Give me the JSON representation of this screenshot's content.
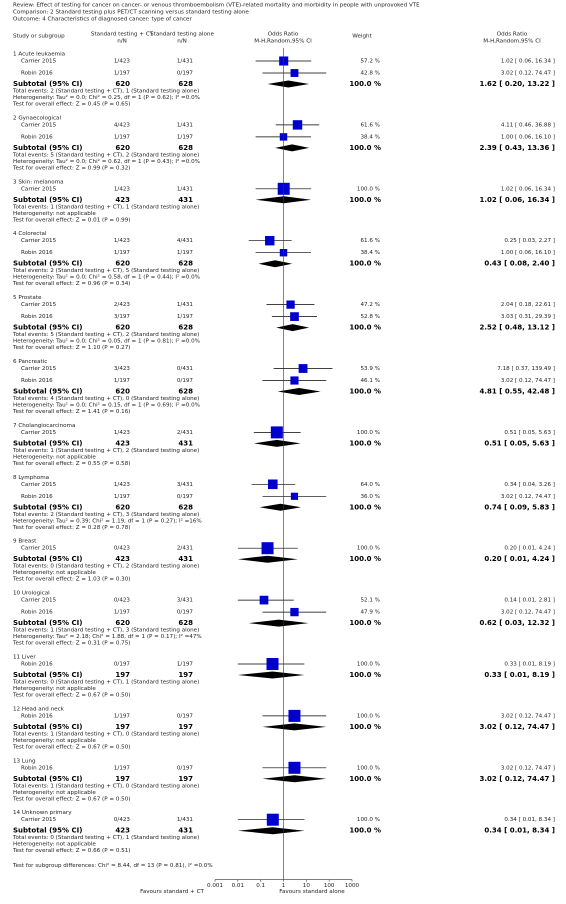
{
  "chart_data": {
    "type": "forest",
    "header": {
      "review": "Review:  Effect of testing for cancer on cancer- or venous thromboembolism (VTE)-related mortality and morbidity in people with unprovoked VTE",
      "comparison": "Comparison:  2 Standard testing plus PET/CT scanning versus standard testing alone",
      "outcome": "Outcome:  4 Characteristics of diagnosed cancer: type of cancer"
    },
    "columns": {
      "study": "Study or subgroup",
      "exp": "Standard testing + CT",
      "exp_sub": "n/N",
      "ctrl": "Standard testing alone",
      "ctrl_sub": "n/N",
      "plot": "Odds Ratio",
      "plot_sub": "M-H,Random,95% CI",
      "weight": "Weight",
      "ci": "Odds Ratio",
      "ci_sub": "M-H,Random,95% CI"
    },
    "subtotal_label": "Subtotal (95% CI)",
    "color": "#0000cc",
    "subgroups": [
      {
        "name": "1 Acute leukaemia",
        "studies": [
          {
            "name": "Carrier 2015",
            "exp": "1/423",
            "ctrl": "1/431",
            "weight": 57.2,
            "weight_label": "57.2 %",
            "or": 1.02,
            "ci_low": 0.06,
            "ci_high": 16.34,
            "label": "1.02 [ 0.06, 16.34 ]"
          },
          {
            "name": "Robin 2016",
            "exp": "1/197",
            "ctrl": "0/197",
            "weight": 42.8,
            "weight_label": "42.8 %",
            "or": 3.02,
            "ci_low": 0.12,
            "ci_high": 74.47,
            "label": "3.02 [ 0.12, 74.47 ]"
          }
        ],
        "subtotal": {
          "exp": 620,
          "ctrl": 628,
          "weight": 100,
          "weight_label": "100.0 %",
          "or": 1.62,
          "ci_low": 0.2,
          "ci_high": 13.22,
          "label": "1.62 [ 0.20, 13.22 ]"
        },
        "events": "Total events: 2 (Standard testing + CT), 1 (Standard testing alone)",
        "heterogeneity": "Heterogeneity: Tau² = 0.0; Chi² = 0.25, df = 1 (P = 0.62); I² =0.0%",
        "effect": "Test for overall effect: Z = 0.45 (P = 0.65)"
      },
      {
        "name": "2 Gynaecological",
        "studies": [
          {
            "name": "Carrier 2015",
            "exp": "4/423",
            "ctrl": "1/431",
            "weight": 61.6,
            "weight_label": "61.6 %",
            "or": 4.11,
            "ci_low": 0.46,
            "ci_high": 36.88,
            "label": "4.11 [ 0.46, 36.88 ]"
          },
          {
            "name": "Robin 2016",
            "exp": "1/197",
            "ctrl": "1/197",
            "weight": 38.4,
            "weight_label": "38.4 %",
            "or": 1.0,
            "ci_low": 0.06,
            "ci_high": 16.1,
            "label": "1.00 [ 0.06, 16.10 ]"
          }
        ],
        "subtotal": {
          "exp": 620,
          "ctrl": 628,
          "weight": 100,
          "weight_label": "100.0 %",
          "or": 2.39,
          "ci_low": 0.43,
          "ci_high": 13.36,
          "label": "2.39 [ 0.43, 13.36 ]"
        },
        "events": "Total events: 5 (Standard testing + CT), 2 (Standard testing alone)",
        "heterogeneity": "Heterogeneity: Tau² = 0.0; Chi² = 0.62, df = 1 (P = 0.43); I² =0.0%",
        "effect": "Test for overall effect: Z = 0.99 (P = 0.32)"
      },
      {
        "name": "3 Skin: melanoma",
        "studies": [
          {
            "name": "Carrier 2015",
            "exp": "1/423",
            "ctrl": "1/431",
            "weight": 100,
            "weight_label": "100.0 %",
            "or": 1.02,
            "ci_low": 0.06,
            "ci_high": 16.34,
            "label": "1.02 [ 0.06, 16.34 ]"
          }
        ],
        "subtotal": {
          "exp": 423,
          "ctrl": 431,
          "weight": 100,
          "weight_label": "100.0 %",
          "or": 1.02,
          "ci_low": 0.06,
          "ci_high": 16.34,
          "label": "1.02 [ 0.06, 16.34 ]"
        },
        "events": "Total events: 1 (Standard testing + CT), 1 (Standard testing alone)",
        "heterogeneity": "Heterogeneity: not applicable",
        "effect": "Test for overall effect: Z = 0.01 (P = 0.99)"
      },
      {
        "name": "4 Colorectal",
        "studies": [
          {
            "name": "Carrier 2015",
            "exp": "1/423",
            "ctrl": "4/431",
            "weight": 61.6,
            "weight_label": "61.6 %",
            "or": 0.25,
            "ci_low": 0.03,
            "ci_high": 2.27,
            "label": "0.25 [ 0.03, 2.27 ]"
          },
          {
            "name": "Robin 2016",
            "exp": "1/197",
            "ctrl": "1/197",
            "weight": 38.4,
            "weight_label": "38.4 %",
            "or": 1.0,
            "ci_low": 0.06,
            "ci_high": 16.1,
            "label": "1.00 [ 0.06, 16.10 ]"
          }
        ],
        "subtotal": {
          "exp": 620,
          "ctrl": 628,
          "weight": 100,
          "weight_label": "100.0 %",
          "or": 0.43,
          "ci_low": 0.08,
          "ci_high": 2.4,
          "label": "0.43 [ 0.08, 2.40 ]"
        },
        "events": "Total events: 2 (Standard testing + CT), 5 (Standard testing alone)",
        "heterogeneity": "Heterogeneity: Tau² = 0.0; Chi² = 0.58, df = 1 (P = 0.44); I² =0.0%",
        "effect": "Test for overall effect: Z = 0.96 (P = 0.34)"
      },
      {
        "name": "5 Prostate",
        "studies": [
          {
            "name": "Carrier 2015",
            "exp": "2/423",
            "ctrl": "1/431",
            "weight": 47.2,
            "weight_label": "47.2 %",
            "or": 2.04,
            "ci_low": 0.18,
            "ci_high": 22.61,
            "label": "2.04 [ 0.18, 22.61 ]"
          },
          {
            "name": "Robin 2016",
            "exp": "3/197",
            "ctrl": "1/197",
            "weight": 52.8,
            "weight_label": "52.8 %",
            "or": 3.03,
            "ci_low": 0.31,
            "ci_high": 29.39,
            "label": "3.03 [ 0.31, 29.39 ]"
          }
        ],
        "subtotal": {
          "exp": 620,
          "ctrl": 628,
          "weight": 100,
          "weight_label": "100.0 %",
          "or": 2.52,
          "ci_low": 0.48,
          "ci_high": 13.12,
          "label": "2.52 [ 0.48, 13.12 ]"
        },
        "events": "Total events: 5 (Standard testing + CT), 2 (Standard testing alone)",
        "heterogeneity": "Heterogeneity: Tau² = 0.0; Chi² = 0.05, df = 1 (P = 0.81); I² =0.0%",
        "effect": "Test for overall effect: Z = 1.10 (P = 0.27)"
      },
      {
        "name": "6 Pancreatic",
        "studies": [
          {
            "name": "Carrier 2015",
            "exp": "3/423",
            "ctrl": "0/431",
            "weight": 53.9,
            "weight_label": "53.9 %",
            "or": 7.18,
            "ci_low": 0.37,
            "ci_high": 139.49,
            "label": "7.18 [ 0.37, 139.49 ]"
          },
          {
            "name": "Robin 2016",
            "exp": "1/197",
            "ctrl": "0/197",
            "weight": 46.1,
            "weight_label": "46.1 %",
            "or": 3.02,
            "ci_low": 0.12,
            "ci_high": 74.47,
            "label": "3.02 [ 0.12, 74.47 ]"
          }
        ],
        "subtotal": {
          "exp": 620,
          "ctrl": 628,
          "weight": 100,
          "weight_label": "100.0 %",
          "or": 4.81,
          "ci_low": 0.55,
          "ci_high": 42.48,
          "label": "4.81 [ 0.55, 42.48 ]"
        },
        "events": "Total events: 4 (Standard testing + CT), 0 (Standard testing alone)",
        "heterogeneity": "Heterogeneity: Tau² = 0.0; Chi² = 0.15, df = 1 (P = 0.69); I² =0.0%",
        "effect": "Test for overall effect: Z = 1.41 (P = 0.16)"
      },
      {
        "name": "7 Cholangiocarcinoma",
        "studies": [
          {
            "name": "Carrier 2015",
            "exp": "1/423",
            "ctrl": "2/431",
            "weight": 100,
            "weight_label": "100.0 %",
            "or": 0.51,
            "ci_low": 0.05,
            "ci_high": 5.63,
            "label": "0.51 [ 0.05, 5.63 ]"
          }
        ],
        "subtotal": {
          "exp": 423,
          "ctrl": 431,
          "weight": 100,
          "weight_label": "100.0 %",
          "or": 0.51,
          "ci_low": 0.05,
          "ci_high": 5.63,
          "label": "0.51 [ 0.05, 5.63 ]"
        },
        "events": "Total events: 1 (Standard testing + CT), 2 (Standard testing alone)",
        "heterogeneity": "Heterogeneity: not applicable",
        "effect": "Test for overall effect: Z = 0.55 (P = 0.58)"
      },
      {
        "name": "8 Lymphoma",
        "studies": [
          {
            "name": "Carrier 2015",
            "exp": "1/423",
            "ctrl": "3/431",
            "weight": 64.0,
            "weight_label": "64.0 %",
            "or": 0.34,
            "ci_low": 0.04,
            "ci_high": 3.26,
            "label": "0.34 [ 0.04, 3.26 ]"
          },
          {
            "name": "Robin 2016",
            "exp": "1/197",
            "ctrl": "0/197",
            "weight": 36.0,
            "weight_label": "36.0 %",
            "or": 3.02,
            "ci_low": 0.12,
            "ci_high": 74.47,
            "label": "3.02 [ 0.12, 74.47 ]"
          }
        ],
        "subtotal": {
          "exp": 620,
          "ctrl": 628,
          "weight": 100,
          "weight_label": "100.0 %",
          "or": 0.74,
          "ci_low": 0.09,
          "ci_high": 5.83,
          "label": "0.74 [ 0.09, 5.83 ]"
        },
        "events": "Total events: 2 (Standard testing + CT), 3 (Standard testing alone)",
        "heterogeneity": "Heterogeneity: Tau² = 0.39; Chi² = 1.19, df = 1 (P = 0.27); I² =16%",
        "effect": "Test for overall effect: Z = 0.28 (P = 0.78)"
      },
      {
        "name": "9 Breast",
        "studies": [
          {
            "name": "Carrier 2015",
            "exp": "0/423",
            "ctrl": "2/431",
            "weight": 100,
            "weight_label": "100.0 %",
            "or": 0.2,
            "ci_low": 0.01,
            "ci_high": 4.24,
            "label": "0.20 [ 0.01, 4.24 ]"
          }
        ],
        "subtotal": {
          "exp": 423,
          "ctrl": 431,
          "weight": 100,
          "weight_label": "100.0 %",
          "or": 0.2,
          "ci_low": 0.01,
          "ci_high": 4.24,
          "label": "0.20 [ 0.01, 4.24 ]"
        },
        "events": "Total events: 0 (Standard testing + CT), 2 (Standard testing alone)",
        "heterogeneity": "Heterogeneity: not applicable",
        "effect": "Test for overall effect: Z = 1.03 (P = 0.30)"
      },
      {
        "name": "10 Urological",
        "studies": [
          {
            "name": "Carrier 2015",
            "exp": "0/423",
            "ctrl": "3/431",
            "weight": 52.1,
            "weight_label": "52.1 %",
            "or": 0.14,
            "ci_low": 0.01,
            "ci_high": 2.81,
            "label": "0.14 [ 0.01, 2.81 ]"
          },
          {
            "name": "Robin 2016",
            "exp": "1/197",
            "ctrl": "0/197",
            "weight": 47.9,
            "weight_label": "47.9 %",
            "or": 3.02,
            "ci_low": 0.12,
            "ci_high": 74.47,
            "label": "3.02 [ 0.12, 74.47 ]"
          }
        ],
        "subtotal": {
          "exp": 620,
          "ctrl": 628,
          "weight": 100,
          "weight_label": "100.0 %",
          "or": 0.62,
          "ci_low": 0.03,
          "ci_high": 12.32,
          "label": "0.62 [ 0.03, 12.32 ]"
        },
        "events": "Total events: 1 (Standard testing + CT), 3 (Standard testing alone)",
        "heterogeneity": "Heterogeneity: Tau² = 2.18; Chi² = 1.88, df = 1 (P = 0.17); I² =47%",
        "effect": "Test for overall effect: Z = 0.31 (P = 0.75)"
      },
      {
        "name": "11 Liver",
        "studies": [
          {
            "name": "Robin 2016",
            "exp": "0/197",
            "ctrl": "1/197",
            "weight": 100,
            "weight_label": "100.0 %",
            "or": 0.33,
            "ci_low": 0.01,
            "ci_high": 8.19,
            "label": "0.33 [ 0.01, 8.19 ]"
          }
        ],
        "subtotal": {
          "exp": 197,
          "ctrl": 197,
          "weight": 100,
          "weight_label": "100.0 %",
          "or": 0.33,
          "ci_low": 0.01,
          "ci_high": 8.19,
          "label": "0.33 [ 0.01, 8.19 ]"
        },
        "events": "Total events: 0 (Standard testing + CT), 1 (Standard testing alone)",
        "heterogeneity": "Heterogeneity: not applicable",
        "effect": "Test for overall effect: Z = 0.67 (P = 0.50)"
      },
      {
        "name": "12 Head and neck",
        "studies": [
          {
            "name": "Robin 2016",
            "exp": "1/197",
            "ctrl": "0/197",
            "weight": 100,
            "weight_label": "100.0 %",
            "or": 3.02,
            "ci_low": 0.12,
            "ci_high": 74.47,
            "label": "3.02 [ 0.12, 74.47 ]"
          }
        ],
        "subtotal": {
          "exp": 197,
          "ctrl": 197,
          "weight": 100,
          "weight_label": "100.0 %",
          "or": 3.02,
          "ci_low": 0.12,
          "ci_high": 74.47,
          "label": "3.02 [ 0.12, 74.47 ]"
        },
        "events": "Total events: 1 (Standard testing + CT), 0 (Standard testing alone)",
        "heterogeneity": "Heterogeneity: not applicable",
        "effect": "Test for overall effect: Z = 0.67 (P = 0.50)"
      },
      {
        "name": "13 Lung",
        "studies": [
          {
            "name": "Robin 2016",
            "exp": "1/197",
            "ctrl": "0/197",
            "weight": 100,
            "weight_label": "100.0 %",
            "or": 3.02,
            "ci_low": 0.12,
            "ci_high": 74.47,
            "label": "3.02 [ 0.12, 74.47 ]"
          }
        ],
        "subtotal": {
          "exp": 197,
          "ctrl": 197,
          "weight": 100,
          "weight_label": "100.0 %",
          "or": 3.02,
          "ci_low": 0.12,
          "ci_high": 74.47,
          "label": "3.02 [ 0.12, 74.47 ]"
        },
        "events": "Total events: 1 (Standard testing + CT), 0 (Standard testing alone)",
        "heterogeneity": "Heterogeneity: not applicable",
        "effect": "Test for overall effect: Z = 0.67 (P = 0.50)"
      },
      {
        "name": "14 Unknown primary",
        "studies": [
          {
            "name": "Carrier 2015",
            "exp": "0/423",
            "ctrl": "1/431",
            "weight": 100,
            "weight_label": "100.0 %",
            "or": 0.34,
            "ci_low": 0.01,
            "ci_high": 8.34,
            "label": "0.34 [ 0.01, 8.34 ]"
          }
        ],
        "subtotal": {
          "exp": 423,
          "ctrl": 431,
          "weight": 100,
          "weight_label": "100.0 %",
          "or": 0.34,
          "ci_low": 0.01,
          "ci_high": 8.34,
          "label": "0.34 [ 0.01, 8.34 ]"
        },
        "events": "Total events: 0 (Standard testing + CT), 1 (Standard testing alone)",
        "heterogeneity": "Heterogeneity: not applicable",
        "effect": "Test for overall effect: Z = 0.66 (P = 0.51)"
      }
    ],
    "subgroup_test": "Test for subgroup differences: Chi² = 8.44, df = 13 (P = 0.81), I² =0.0%",
    "xlim": [
      0.001,
      1000
    ],
    "xticks": [
      0.001,
      0.01,
      0.1,
      1,
      10,
      100,
      1000
    ],
    "log_scale": true,
    "favours_left": "Favours standard + CT",
    "favours_right": "Favours standard alone"
  }
}
